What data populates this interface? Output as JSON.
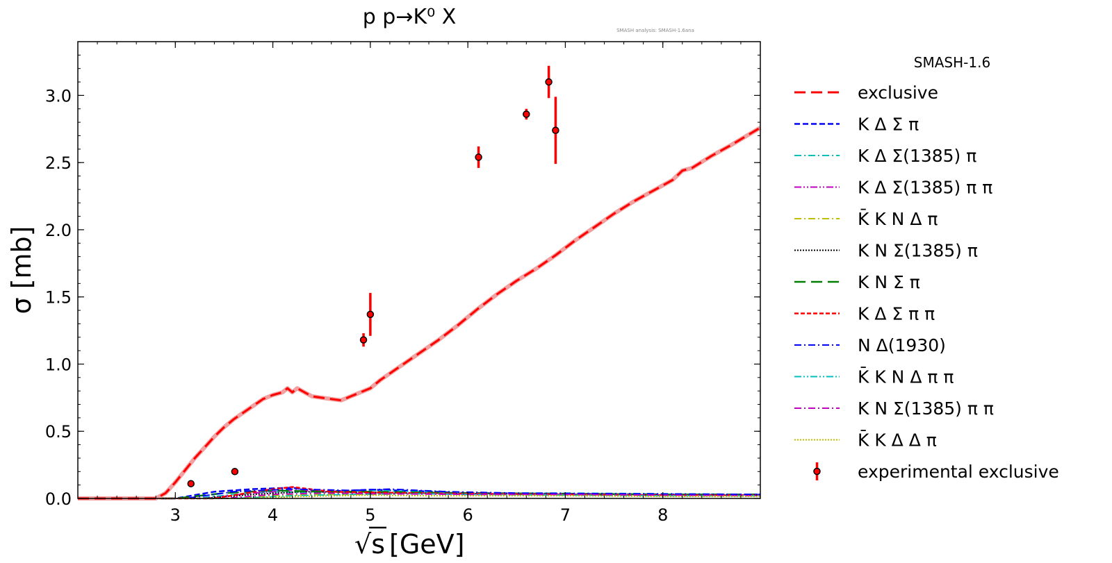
{
  "chart_data": {
    "type": "line",
    "title": "p p→K⁰ X",
    "annotation": "SMASH analysis: SMASH-1.6ana",
    "xlabel_prefix": "√s",
    "xlabel": "[GeV]",
    "ylabel": "σ [mb]",
    "xlim": [
      2.0,
      9.0
    ],
    "ylim": [
      0.0,
      3.4
    ],
    "xticks": [
      3,
      4,
      5,
      6,
      7,
      8
    ],
    "xtick_labels": [
      "3",
      "4",
      "5",
      "6",
      "7",
      "8"
    ],
    "yticks": [
      0.0,
      0.5,
      1.0,
      1.5,
      2.0,
      2.5,
      3.0
    ],
    "ytick_labels": [
      "0.0",
      "0.5",
      "1.0",
      "1.5",
      "2.0",
      "2.5",
      "3.0"
    ],
    "grid": false,
    "legend_title": "SMASH-1.6",
    "legend_position": "outside-right",
    "series": [
      {
        "name": "exclusive",
        "color": "#ff0000",
        "dash": "16,8",
        "width": 3,
        "x": [
          2.0,
          2.8,
          2.9,
          3.0,
          3.1,
          3.2,
          3.3,
          3.4,
          3.5,
          3.6,
          3.7,
          3.8,
          3.9,
          4.0,
          4.1,
          4.15,
          4.2,
          4.25,
          4.3,
          4.4,
          4.5,
          4.6,
          4.7,
          4.8,
          4.9,
          5.0,
          5.1,
          5.3,
          5.5,
          5.7,
          5.9,
          6.1,
          6.3,
          6.5,
          6.7,
          6.9,
          7.1,
          7.3,
          7.5,
          7.7,
          7.9,
          8.1,
          8.2,
          8.3,
          8.5,
          8.7,
          9.0
        ],
        "y": [
          0.0,
          0.0,
          0.04,
          0.12,
          0.21,
          0.3,
          0.38,
          0.46,
          0.53,
          0.59,
          0.64,
          0.69,
          0.74,
          0.77,
          0.79,
          0.82,
          0.79,
          0.82,
          0.8,
          0.76,
          0.75,
          0.74,
          0.73,
          0.76,
          0.79,
          0.82,
          0.88,
          0.98,
          1.08,
          1.18,
          1.29,
          1.41,
          1.52,
          1.62,
          1.71,
          1.81,
          1.92,
          2.02,
          2.12,
          2.21,
          2.29,
          2.37,
          2.44,
          2.46,
          2.55,
          2.63,
          2.76
        ]
      },
      {
        "name": "K Δ Σ π",
        "color": "#0000ff",
        "dash": "8,4",
        "width": 2.5,
        "x": [
          2.0,
          3.0,
          3.4,
          3.8,
          4.2,
          4.5,
          5.0,
          5.5,
          6.0,
          7.0,
          8.0,
          9.0
        ],
        "y": [
          0.0,
          0.0,
          0.05,
          0.07,
          0.08,
          0.05,
          0.065,
          0.055,
          0.04,
          0.035,
          0.03,
          0.03
        ]
      },
      {
        "name": "K Δ Σ(1385) π",
        "color": "#00bfbf",
        "dash": "10,4,2,4",
        "width": 2,
        "x": [
          2.0,
          3.2,
          3.6,
          4.0,
          4.5,
          5.0,
          5.5,
          6.0,
          7.0,
          8.0,
          9.0
        ],
        "y": [
          0.0,
          0.0,
          0.03,
          0.05,
          0.04,
          0.06,
          0.05,
          0.04,
          0.04,
          0.035,
          0.03
        ]
      },
      {
        "name": "K Δ Σ(1385) π π",
        "color": "#bf00bf",
        "dash": "10,3,2,3,2,3",
        "width": 2,
        "x": [
          2.0,
          3.3,
          3.8,
          4.2,
          4.6,
          5.0,
          5.5,
          6.0,
          7.0,
          8.0,
          9.0
        ],
        "y": [
          0.0,
          0.0,
          0.04,
          0.06,
          0.05,
          0.04,
          0.035,
          0.03,
          0.03,
          0.025,
          0.025
        ]
      },
      {
        "name": "K̄ K N Δ π",
        "color": "#bfbf00",
        "dash": "10,4,2,4",
        "width": 2,
        "x": [
          2.0,
          3.5,
          4.0,
          4.5,
          5.0,
          5.5,
          6.0,
          7.0,
          8.0,
          9.0
        ],
        "y": [
          0.0,
          0.0,
          0.02,
          0.03,
          0.03,
          0.035,
          0.03,
          0.03,
          0.025,
          0.02
        ]
      },
      {
        "name": "K N Σ(1385) π",
        "color": "#000000",
        "dash": "2,2",
        "width": 2,
        "x": [
          2.0,
          3.3,
          3.8,
          4.3,
          5.0,
          5.5,
          6.0,
          7.0,
          8.0,
          9.0
        ],
        "y": [
          0.0,
          0.0,
          0.03,
          0.05,
          0.045,
          0.04,
          0.035,
          0.03,
          0.025,
          0.025
        ]
      },
      {
        "name": "K N Σ π",
        "color": "#008000",
        "dash": "16,8",
        "width": 2.5,
        "x": [
          2.0,
          3.0,
          3.5,
          4.0,
          4.5,
          5.0,
          5.5,
          6.0,
          7.0,
          8.0,
          9.0
        ],
        "y": [
          0.0,
          0.0,
          0.04,
          0.06,
          0.05,
          0.05,
          0.045,
          0.04,
          0.035,
          0.03,
          0.03
        ]
      },
      {
        "name": "K Δ Σ π π",
        "color": "#ff0000",
        "dash": "6,3",
        "width": 2.5,
        "x": [
          2.0,
          3.4,
          3.9,
          4.2,
          4.6,
          5.0,
          5.5,
          6.0,
          7.0,
          8.0,
          9.0
        ],
        "y": [
          0.0,
          0.0,
          0.06,
          0.085,
          0.05,
          0.045,
          0.04,
          0.035,
          0.03,
          0.025,
          0.025
        ]
      },
      {
        "name": "N Δ(1930)",
        "color": "#0000ff",
        "dash": "10,4,2,4",
        "width": 2,
        "x": [
          2.0,
          3.1,
          3.6,
          4.2,
          4.8,
          5.2,
          5.8,
          6.5,
          7.5,
          9.0
        ],
        "y": [
          0.0,
          0.0,
          0.05,
          0.07,
          0.06,
          0.07,
          0.05,
          0.04,
          0.035,
          0.03
        ]
      },
      {
        "name": "K̄ K N Δ π π",
        "color": "#00bfbf",
        "dash": "10,3,2,3,2,3",
        "width": 2,
        "x": [
          2.0,
          3.6,
          4.2,
          4.8,
          5.5,
          6.0,
          7.0,
          8.0,
          9.0
        ],
        "y": [
          0.0,
          0.0,
          0.02,
          0.03,
          0.035,
          0.03,
          0.025,
          0.02,
          0.02
        ]
      },
      {
        "name": "K N Σ(1385) π π",
        "color": "#bf00bf",
        "dash": "10,4,2,4",
        "width": 2,
        "x": [
          2.0,
          3.5,
          4.0,
          4.5,
          5.0,
          6.0,
          7.0,
          8.0,
          9.0
        ],
        "y": [
          0.0,
          0.0,
          0.03,
          0.04,
          0.035,
          0.03,
          0.03,
          0.025,
          0.02
        ]
      },
      {
        "name": "K̄ K Δ Δ π",
        "color": "#bfbf00",
        "dash": "2,2",
        "width": 2,
        "x": [
          2.0,
          3.7,
          4.3,
          5.0,
          5.5,
          6.0,
          7.0,
          8.0,
          9.0
        ],
        "y": [
          0.0,
          0.0,
          0.015,
          0.025,
          0.02,
          0.02,
          0.02,
          0.015,
          0.015
        ]
      }
    ],
    "experimental": {
      "name": "experimental exclusive",
      "color": "#ff0000",
      "points": [
        {
          "x": 3.16,
          "y": 0.11,
          "err": 0.0
        },
        {
          "x": 3.61,
          "y": 0.2,
          "err": 0.0
        },
        {
          "x": 4.93,
          "y": 1.18,
          "err": 0.05
        },
        {
          "x": 5.0,
          "y": 1.37,
          "err": 0.16
        },
        {
          "x": 6.11,
          "y": 2.54,
          "err": 0.08
        },
        {
          "x": 6.6,
          "y": 2.86,
          "err": 0.04
        },
        {
          "x": 6.83,
          "y": 3.1,
          "err": 0.12
        },
        {
          "x": 6.9,
          "y": 2.74,
          "err": 0.25
        }
      ]
    }
  }
}
